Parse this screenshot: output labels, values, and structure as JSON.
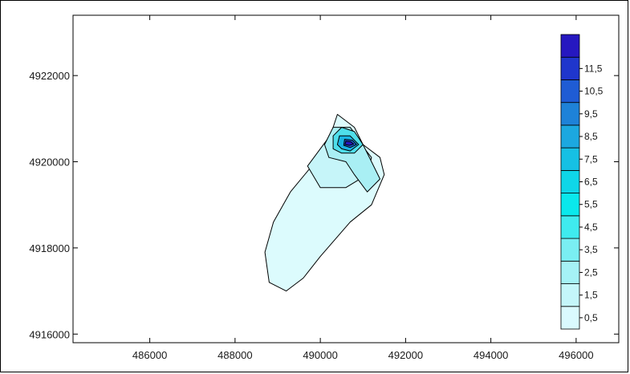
{
  "chart_data": {
    "type": "contour",
    "title": "",
    "xlabel": "",
    "ylabel": "",
    "xlim": [
      484200,
      497000
    ],
    "ylim": [
      4915800,
      4923400
    ],
    "x_ticks": [
      486000,
      488000,
      490000,
      492000,
      494000,
      496000
    ],
    "x_tick_labels": [
      "486000",
      "488000",
      "490000",
      "492000",
      "494000",
      "496000"
    ],
    "y_ticks": [
      4916000,
      4918000,
      4920000,
      4922000
    ],
    "y_tick_labels": [
      "4916000",
      "4918000",
      "4920000",
      "4922000"
    ],
    "grid": false,
    "legend_position": "right",
    "levels": [
      {
        "label": "0,5",
        "color": "#dafafe"
      },
      {
        "label": "1,5",
        "color": "#c4f6fa"
      },
      {
        "label": "2,5",
        "color": "#a5f2f6"
      },
      {
        "label": "3,5",
        "color": "#7aeef2"
      },
      {
        "label": "4,5",
        "color": "#3febef"
      },
      {
        "label": "5,5",
        "color": "#0ae8ec"
      },
      {
        "label": "6,5",
        "color": "#0fd6e8"
      },
      {
        "label": "7,5",
        "color": "#16c0e4"
      },
      {
        "label": "8,5",
        "color": "#1ca8e0"
      },
      {
        "label": "9,5",
        "color": "#1e82d8"
      },
      {
        "label": "10,5",
        "color": "#1f5cd4"
      },
      {
        "label": "11,5",
        "color": "#1f36cc"
      },
      {
        "label": "",
        "color": "#2618c0"
      }
    ],
    "contours": [
      {
        "level": 0.5,
        "fill": "#dcfbfd",
        "points": [
          [
            489200,
            4917000
          ],
          [
            488800,
            4917200
          ],
          [
            488700,
            4917900
          ],
          [
            488900,
            4918600
          ],
          [
            489300,
            4919300
          ],
          [
            489800,
            4919900
          ],
          [
            490200,
            4920500
          ],
          [
            490400,
            4921100
          ],
          [
            490800,
            4920800
          ],
          [
            491000,
            4920400
          ],
          [
            491400,
            4920100
          ],
          [
            491500,
            4919700
          ],
          [
            491200,
            4919000
          ],
          [
            490700,
            4918600
          ],
          [
            490000,
            4917800
          ],
          [
            489600,
            4917300
          ]
        ]
      },
      {
        "level": 1.5,
        "fill": "#c6f5f9",
        "points": [
          [
            490000,
            4919400
          ],
          [
            489700,
            4919900
          ],
          [
            490000,
            4920300
          ],
          [
            490300,
            4920700
          ],
          [
            490800,
            4920600
          ],
          [
            491200,
            4920100
          ],
          [
            491100,
            4919700
          ],
          [
            490600,
            4919400
          ]
        ]
      },
      {
        "level": 2.5,
        "fill": "#a9eff4",
        "points": [
          [
            490200,
            4920100
          ],
          [
            490100,
            4920400
          ],
          [
            490300,
            4920800
          ],
          [
            490700,
            4920800
          ],
          [
            491000,
            4920400
          ],
          [
            491200,
            4920000
          ],
          [
            491400,
            4919600
          ],
          [
            491100,
            4919300
          ],
          [
            490800,
            4919700
          ],
          [
            490600,
            4920000
          ]
        ]
      },
      {
        "level": 4.5,
        "fill": "#4fdeea",
        "points": [
          [
            490300,
            4920300
          ],
          [
            490300,
            4920600
          ],
          [
            490500,
            4920800
          ],
          [
            490800,
            4920700
          ],
          [
            491000,
            4920400
          ],
          [
            490800,
            4920200
          ],
          [
            490500,
            4920200
          ]
        ]
      },
      {
        "level": 6.5,
        "fill": "#19b3e3",
        "points": [
          [
            490400,
            4920400
          ],
          [
            490450,
            4920600
          ],
          [
            490700,
            4920600
          ],
          [
            490900,
            4920400
          ],
          [
            490700,
            4920250
          ],
          [
            490500,
            4920300
          ]
        ]
      },
      {
        "level": 9.5,
        "fill": "#1f5cd4",
        "points": [
          [
            490550,
            4920380
          ],
          [
            490570,
            4920520
          ],
          [
            490750,
            4920500
          ],
          [
            490850,
            4920400
          ],
          [
            490700,
            4920330
          ]
        ]
      },
      {
        "level": 11.5,
        "fill": "#2618c0",
        "points": [
          [
            490580,
            4920400
          ],
          [
            490600,
            4920480
          ],
          [
            490720,
            4920460
          ],
          [
            490780,
            4920410
          ],
          [
            490680,
            4920380
          ]
        ]
      }
    ]
  }
}
